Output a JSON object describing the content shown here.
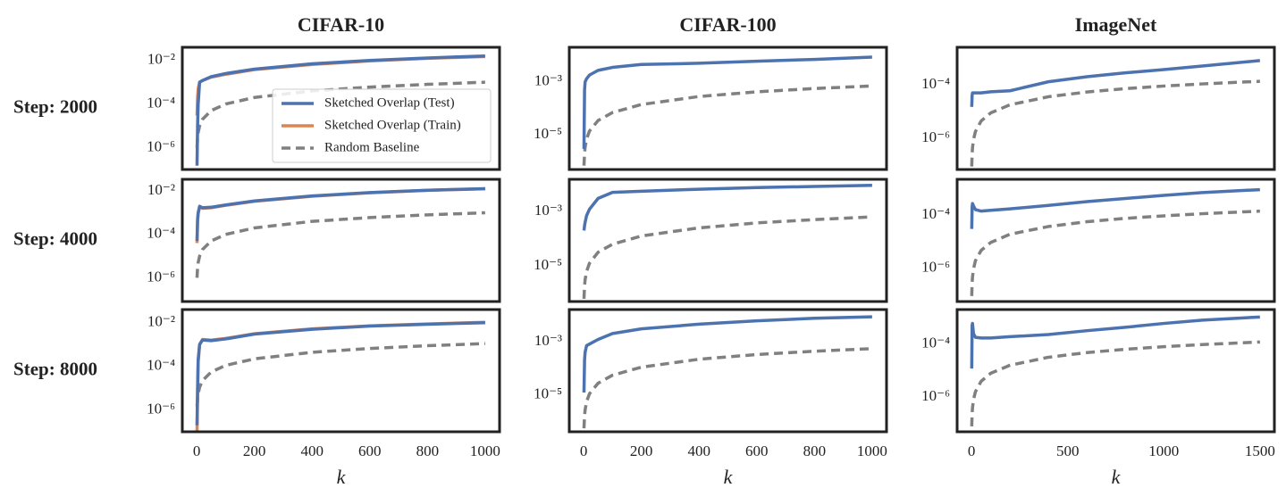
{
  "chart_data": [
    {
      "type": "line",
      "title": "CIFAR-10",
      "row_label": "Step: 2000",
      "log_y": true,
      "legend": "lower right",
      "xlim": [
        -50,
        1050
      ],
      "ylim": [
        1e-07,
        0.04
      ],
      "yticks": [
        {
          "value": 1e-06,
          "label": "10⁻⁶"
        },
        {
          "value": 0.0001,
          "label": "10⁻⁴"
        },
        {
          "value": 0.01,
          "label": "10⁻²"
        }
      ],
      "x": [
        1,
        3,
        5,
        10,
        20,
        50,
        100,
        200,
        400,
        600,
        800,
        1000
      ],
      "series": [
        {
          "name": "Sketched Overlap (Test)",
          "color": "#4c72b0",
          "dashed": false,
          "values": [
            1.5e-07,
            1e-05,
            0.0001,
            0.001,
            0.0012,
            0.0018,
            0.0025,
            0.004,
            0.007,
            0.01,
            0.013,
            0.016
          ]
        },
        {
          "name": "Sketched Overlap (Train)",
          "color": "#dd8452",
          "dashed": false,
          "values": [
            3e-05,
            0.0002,
            0.0005,
            0.001,
            0.0012,
            0.0017,
            0.0023,
            0.0038,
            0.0065,
            0.0095,
            0.0125,
            0.015
          ]
        },
        {
          "name": "Random Baseline",
          "color": "#808080",
          "dashed": true,
          "values": [
            1e-06,
            3e-06,
            5e-06,
            1e-05,
            2e-05,
            5e-05,
            0.0001,
            0.0002,
            0.0004,
            0.0006,
            0.0008,
            0.001
          ]
        }
      ]
    },
    {
      "type": "line",
      "title": "CIFAR-100",
      "log_y": true,
      "xlim": [
        -50,
        1050
      ],
      "ylim": [
        5e-07,
        0.02
      ],
      "yticks": [
        {
          "value": 1e-05,
          "label": "10⁻⁵"
        },
        {
          "value": 0.001,
          "label": "10⁻³"
        }
      ],
      "x": [
        1,
        3,
        5,
        10,
        20,
        50,
        100,
        200,
        400,
        600,
        800,
        1000
      ],
      "series": [
        {
          "color": "#4c72b0",
          "dashed": false,
          "values": [
            3e-06,
            0.0005,
            0.001,
            0.0013,
            0.0018,
            0.0027,
            0.0035,
            0.0045,
            0.005,
            0.006,
            0.007,
            0.0085
          ]
        },
        {
          "color": "#808080",
          "dashed": true,
          "values": [
            7e-07,
            2e-06,
            3.5e-06,
            7e-06,
            1.4e-05,
            3.5e-05,
            7e-05,
            0.00014,
            0.00028,
            0.00042,
            0.00056,
            0.0007
          ]
        }
      ]
    },
    {
      "type": "line",
      "title": "ImageNet",
      "log_y": true,
      "xlim": [
        -75,
        1575
      ],
      "ylim": [
        7e-08,
        0.0025
      ],
      "yticks": [
        {
          "value": 1e-06,
          "label": "10⁻⁶"
        },
        {
          "value": 0.0001,
          "label": "10⁻⁴"
        }
      ],
      "x": [
        1,
        3,
        5,
        10,
        20,
        50,
        100,
        200,
        400,
        600,
        800,
        1000,
        1200,
        1500
      ],
      "series": [
        {
          "color": "#4c72b0",
          "dashed": false,
          "values": [
            1.5e-05,
            4e-05,
            5e-05,
            5e-05,
            5e-05,
            5e-05,
            5.5e-05,
            6e-05,
            0.00013,
            0.0002,
            0.00028,
            0.00037,
            0.0005,
            0.0008
          ]
        },
        {
          "color": "#808080",
          "dashed": true,
          "values": [
            9e-08,
            2.7e-07,
            4.5e-07,
            9e-07,
            1.8e-06,
            4.5e-06,
            9e-06,
            1.8e-05,
            3.6e-05,
            5.4e-05,
            7.2e-05,
            9e-05,
            0.000108,
            0.000135
          ]
        }
      ]
    },
    {
      "type": "line",
      "row_label": "Step: 4000",
      "log_y": true,
      "xlim": [
        -50,
        1050
      ],
      "ylim": [
        8e-08,
        0.035
      ],
      "yticks": [
        {
          "value": 1e-06,
          "label": "10⁻⁶"
        },
        {
          "value": 0.0001,
          "label": "10⁻⁴"
        },
        {
          "value": 0.01,
          "label": "10⁻²"
        }
      ],
      "x": [
        1,
        3,
        5,
        10,
        20,
        50,
        100,
        200,
        400,
        600,
        800,
        1000
      ],
      "series": [
        {
          "color": "#4c72b0",
          "dashed": false,
          "values": [
            5e-05,
            0.0005,
            0.001,
            0.002,
            0.0017,
            0.0018,
            0.0023,
            0.0035,
            0.006,
            0.0085,
            0.011,
            0.013
          ]
        },
        {
          "color": "#dd8452",
          "dashed": false,
          "values": [
            4e-05,
            0.0004,
            0.0009,
            0.0019,
            0.0016,
            0.0017,
            0.0022,
            0.0034,
            0.0058,
            0.0083,
            0.0108,
            0.0128
          ]
        },
        {
          "color": "#808080",
          "dashed": true,
          "values": [
            1e-06,
            3e-06,
            5e-06,
            1e-05,
            2e-05,
            5e-05,
            0.0001,
            0.0002,
            0.0004,
            0.0006,
            0.0008,
            0.001
          ]
        }
      ]
    },
    {
      "type": "line",
      "log_y": true,
      "xlim": [
        -50,
        1050
      ],
      "ylim": [
        5e-07,
        0.015
      ],
      "yticks": [
        {
          "value": 1e-05,
          "label": "10⁻⁵"
        },
        {
          "value": 0.001,
          "label": "10⁻³"
        }
      ],
      "x": [
        1,
        3,
        5,
        10,
        20,
        50,
        100,
        200,
        400,
        600,
        800,
        1000
      ],
      "series": [
        {
          "color": "#4c72b0",
          "dashed": false,
          "values": [
            0.0002,
            0.0003,
            0.0004,
            0.0007,
            0.0012,
            0.003,
            0.005,
            0.0055,
            0.0065,
            0.0075,
            0.0082,
            0.009
          ]
        },
        {
          "color": "#808080",
          "dashed": true,
          "values": [
            6.3e-07,
            1.9e-06,
            3.2e-06,
            6.3e-06,
            1.26e-05,
            3.2e-05,
            6.3e-05,
            0.000126,
            0.00025,
            0.00038,
            0.0005,
            0.00063
          ]
        }
      ]
    },
    {
      "type": "line",
      "log_y": true,
      "xlim": [
        -75,
        1575
      ],
      "ylim": [
        5.6e-08,
        0.0022
      ],
      "yticks": [
        {
          "value": 1e-06,
          "label": "10⁻⁶"
        },
        {
          "value": 0.0001,
          "label": "10⁻⁴"
        }
      ],
      "x": [
        1,
        3,
        5,
        10,
        20,
        50,
        100,
        200,
        400,
        600,
        800,
        1000,
        1200,
        1500
      ],
      "series": [
        {
          "color": "#4c72b0",
          "dashed": false,
          "values": [
            3e-05,
            0.0002,
            0.00027,
            0.00022,
            0.00016,
            0.00014,
            0.00015,
            0.00017,
            0.00023,
            0.00032,
            0.00042,
            0.00055,
            0.0007,
            0.0009
          ]
        },
        {
          "color": "#808080",
          "dashed": true,
          "values": [
            9e-08,
            2.8e-07,
            4.7e-07,
            9.3e-07,
            1.9e-06,
            4.7e-06,
            9.3e-06,
            1.9e-05,
            3.7e-05,
            5.6e-05,
            7.5e-05,
            9.3e-05,
            0.000112,
            0.00014
          ]
        }
      ]
    },
    {
      "type": "line",
      "row_label": "Step: 8000",
      "log_y": true,
      "xlabel": "k",
      "xlim": [
        -50,
        1050
      ],
      "ylim": [
        1e-07,
        0.04
      ],
      "xticks": [
        0,
        200,
        400,
        600,
        800,
        1000
      ],
      "yticks": [
        {
          "value": 1e-06,
          "label": "10⁻⁶"
        },
        {
          "value": 0.0001,
          "label": "10⁻⁴"
        },
        {
          "value": 0.01,
          "label": "10⁻²"
        }
      ],
      "x": [
        1,
        3,
        5,
        10,
        20,
        50,
        100,
        200,
        400,
        600,
        800,
        1000
      ],
      "series": [
        {
          "color": "#4c72b0",
          "dashed": false,
          "values": [
            2e-07,
            1e-05,
            0.0002,
            0.001,
            0.0016,
            0.0015,
            0.0018,
            0.003,
            0.005,
            0.007,
            0.0085,
            0.01
          ]
        },
        {
          "color": "#dd8452",
          "dashed": false,
          "values": [
            1e-07,
            5e-06,
            0.00015,
            0.001,
            0.0017,
            0.0016,
            0.0019,
            0.0031,
            0.0052,
            0.0072,
            0.0088,
            0.0105
          ]
        },
        {
          "color": "#808080",
          "dashed": true,
          "values": [
            1.5e-06,
            3.3e-06,
            5.5e-06,
            1.1e-05,
            2.2e-05,
            5.5e-05,
            0.00011,
            0.00022,
            0.00044,
            0.00066,
            0.00088,
            0.0011
          ]
        }
      ]
    },
    {
      "type": "line",
      "log_y": true,
      "xlabel": "k",
      "xlim": [
        -50,
        1050
      ],
      "ylim": [
        4e-07,
        0.016
      ],
      "xticks": [
        0,
        200,
        400,
        600,
        800,
        1000
      ],
      "yticks": [
        {
          "value": 1e-05,
          "label": "10⁻⁵"
        },
        {
          "value": 0.001,
          "label": "10⁻³"
        }
      ],
      "x": [
        1,
        3,
        5,
        10,
        20,
        50,
        100,
        200,
        400,
        600,
        800,
        1000
      ],
      "series": [
        {
          "color": "#4c72b0",
          "dashed": false,
          "values": [
            1.2e-05,
            0.0002,
            0.0004,
            0.0007,
            0.0008,
            0.0012,
            0.002,
            0.003,
            0.0045,
            0.006,
            0.0075,
            0.0085
          ]
        },
        {
          "color": "#808080",
          "dashed": true,
          "values": [
            5.4e-07,
            1.6e-06,
            2.7e-06,
            5.4e-06,
            1.08e-05,
            2.7e-05,
            5.4e-05,
            0.000108,
            0.000216,
            0.000324,
            0.000432,
            0.00054
          ]
        }
      ]
    },
    {
      "type": "line",
      "log_y": true,
      "xlabel": "k",
      "xlim": [
        -75,
        1575
      ],
      "ylim": [
        5e-08,
        0.002
      ],
      "xticks": [
        0,
        500,
        1000,
        1500
      ],
      "yticks": [
        {
          "value": 1e-06,
          "label": "10⁻⁶"
        },
        {
          "value": 0.0001,
          "label": "10⁻⁴"
        }
      ],
      "x": [
        1,
        3,
        5,
        10,
        20,
        50,
        100,
        200,
        400,
        600,
        800,
        1000,
        1200,
        1500
      ],
      "series": [
        {
          "color": "#4c72b0",
          "dashed": false,
          "values": [
            1.2e-05,
            0.0005,
            0.0006,
            0.00025,
            0.00018,
            0.00017,
            0.00017,
            0.00019,
            0.00023,
            0.00032,
            0.00043,
            0.0006,
            0.0008,
            0.00105
          ]
        },
        {
          "color": "#808080",
          "dashed": true,
          "values": [
            8e-08,
            2.4e-07,
            4e-07,
            8e-07,
            1.6e-06,
            4e-06,
            8e-06,
            1.6e-05,
            3.2e-05,
            4.8e-05,
            6.4e-05,
            8e-05,
            9.6e-05,
            0.00012
          ]
        }
      ]
    }
  ]
}
